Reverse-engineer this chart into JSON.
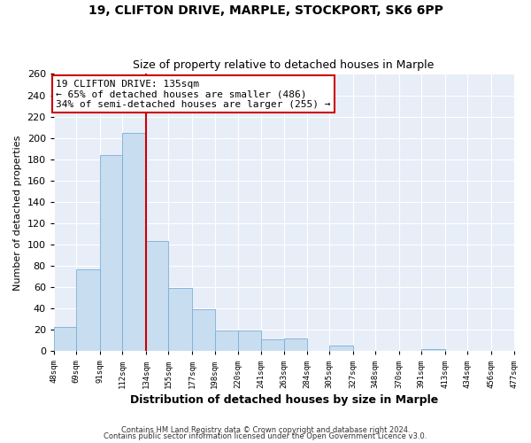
{
  "title": "19, CLIFTON DRIVE, MARPLE, STOCKPORT, SK6 6PP",
  "subtitle": "Size of property relative to detached houses in Marple",
  "xlabel": "Distribution of detached houses by size in Marple",
  "ylabel": "Number of detached properties",
  "bar_edges": [
    48,
    69,
    91,
    112,
    134,
    155,
    177,
    198,
    220,
    241,
    263,
    284,
    305,
    327,
    348,
    370,
    391,
    413,
    434,
    456,
    477
  ],
  "bar_heights": [
    23,
    77,
    184,
    205,
    103,
    59,
    39,
    19,
    19,
    11,
    12,
    0,
    5,
    0,
    0,
    0,
    2,
    0,
    0,
    0,
    0
  ],
  "bar_color": "#c8ddf0",
  "bar_edge_color": "#7aafd4",
  "vline_x": 134,
  "vline_color": "#cc0000",
  "ylim": [
    0,
    260
  ],
  "yticks": [
    0,
    20,
    40,
    60,
    80,
    100,
    120,
    140,
    160,
    180,
    200,
    220,
    240,
    260
  ],
  "tick_labels": [
    "48sqm",
    "69sqm",
    "91sqm",
    "112sqm",
    "134sqm",
    "155sqm",
    "177sqm",
    "198sqm",
    "220sqm",
    "241sqm",
    "263sqm",
    "284sqm",
    "305sqm",
    "327sqm",
    "348sqm",
    "370sqm",
    "391sqm",
    "413sqm",
    "434sqm",
    "456sqm",
    "477sqm"
  ],
  "annotation_title": "19 CLIFTON DRIVE: 135sqm",
  "annotation_line1": "← 65% of detached houses are smaller (486)",
  "annotation_line2": "34% of semi-detached houses are larger (255) →",
  "footer1": "Contains HM Land Registry data © Crown copyright and database right 2024.",
  "footer2": "Contains public sector information licensed under the Open Government Licence v3.0.",
  "bg_color": "#ffffff",
  "plot_bg_color": "#e8eef8",
  "grid_color": "#ffffff"
}
